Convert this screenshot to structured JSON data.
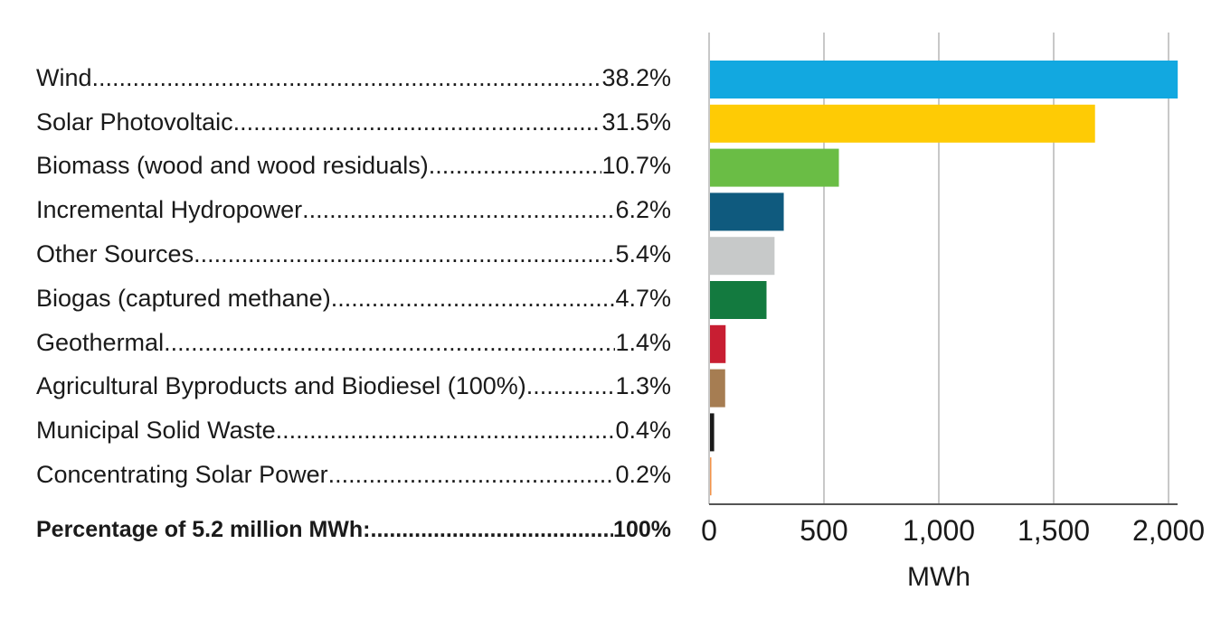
{
  "chart_data": {
    "type": "bar",
    "orientation": "horizontal",
    "categories": [
      "Wind",
      "Solar Photovoltaic",
      "Biomass (wood and wood residuals)",
      "Incremental Hydropower",
      "Other Sources",
      "Biogas (captured methane)",
      "Geothermal",
      "Agricultural Byproducts and Biodiesel (100%)",
      "Municipal Solid Waste",
      "Concentrating Solar Power"
    ],
    "percentages": [
      "38.2%",
      "31.5%",
      "10.7%",
      "6.2%",
      "5.4%",
      "4.7%",
      "1.4%",
      "1.3%",
      "0.4%",
      "0.2%"
    ],
    "values": [
      2040,
      1680,
      565,
      325,
      285,
      250,
      72,
      70,
      22,
      10
    ],
    "colors": [
      "#12a8e0",
      "#fecb05",
      "#6abd45",
      "#0f5a7e",
      "#c7c9c9",
      "#137a3f",
      "#c81e32",
      "#a67d52",
      "#1a1a1a",
      "#f2934a"
    ],
    "xlabel": "MWh",
    "xlim": [
      0,
      2050
    ],
    "xticks": [
      0,
      500,
      1000,
      1500,
      2000
    ],
    "xtick_labels": [
      "0",
      "500",
      "1,000",
      "1,500",
      "2,000"
    ],
    "grid": "vertical",
    "total": {
      "label": "Percentage of 5.2 million MWh:",
      "value": "100%"
    }
  }
}
